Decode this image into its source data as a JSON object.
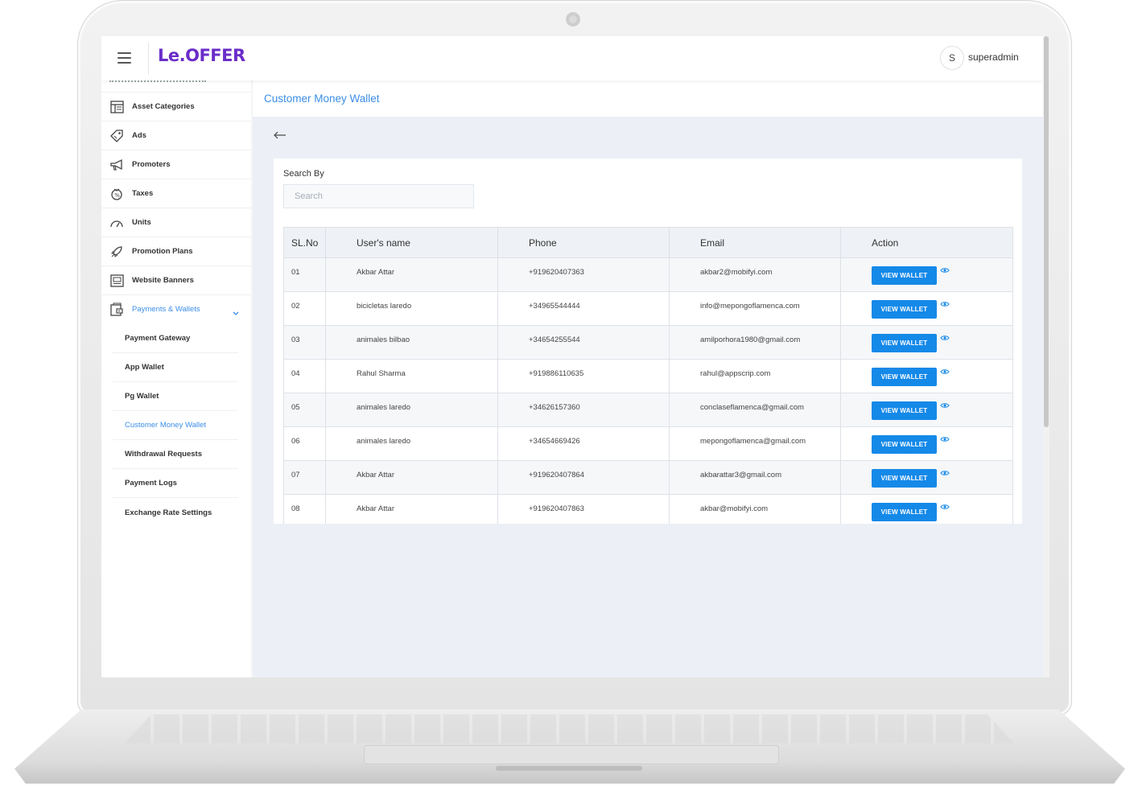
{
  "app": {
    "logo": "Le.OFFER"
  },
  "user": {
    "initial": "S",
    "name": "superadmin"
  },
  "sidebar": {
    "items": [
      {
        "label": "Asset Categories",
        "icon": "asset-categories-icon"
      },
      {
        "label": "Ads",
        "icon": "tag-icon"
      },
      {
        "label": "Promoters",
        "icon": "megaphone-icon"
      },
      {
        "label": "Taxes",
        "icon": "tax-icon"
      },
      {
        "label": "Units",
        "icon": "gauge-icon"
      },
      {
        "label": "Promotion Plans",
        "icon": "rocket-icon"
      },
      {
        "label": "Website Banners",
        "icon": "banner-icon"
      },
      {
        "label": "Payments & Wallets",
        "icon": "wallet-icon"
      }
    ],
    "subitems": [
      {
        "label": "Payment Gateway"
      },
      {
        "label": "App Wallet"
      },
      {
        "label": "Pg Wallet"
      },
      {
        "label": "Customer Money Wallet",
        "active": true
      },
      {
        "label": "Withdrawal Requests"
      },
      {
        "label": "Payment Logs"
      },
      {
        "label": "Exchange Rate Settings"
      }
    ]
  },
  "page": {
    "title": "Customer Money Wallet"
  },
  "search": {
    "label": "Search By",
    "placeholder": "Search",
    "value": ""
  },
  "table": {
    "headers": [
      "SL.No",
      "User's name",
      "Phone",
      "Email",
      "Action"
    ],
    "action_label": "VIEW WALLET",
    "rows": [
      {
        "sl": "01",
        "name": "Akbar Attar",
        "phone": "+919620407363",
        "email": "akbar2@mobifyi.com"
      },
      {
        "sl": "02",
        "name": "bicicletas laredo",
        "phone": "+34965544444",
        "email": "info@mepongoflamenca.com"
      },
      {
        "sl": "03",
        "name": "animales bilbao",
        "phone": "+34654255544",
        "email": "amilporhora1980@gmail.com"
      },
      {
        "sl": "04",
        "name": "Rahul Sharma",
        "phone": "+919886110635",
        "email": "rahul@appscrip.com"
      },
      {
        "sl": "05",
        "name": "animales laredo",
        "phone": "+34626157360",
        "email": "conclaseflamenca@gmail.com"
      },
      {
        "sl": "06",
        "name": "animales laredo",
        "phone": "+34654669426",
        "email": "mepongoflamenca@gmail.com"
      },
      {
        "sl": "07",
        "name": "Akbar Attar",
        "phone": "+919620407864",
        "email": "akbarattar3@gmail.com"
      },
      {
        "sl": "08",
        "name": "Akbar Attar",
        "phone": "+919620407863",
        "email": "akbar@mobifyi.com"
      }
    ]
  },
  "colors": {
    "accent": "#3b8ee6",
    "button": "#1589e8",
    "brand": "#6a2dc9",
    "background": "#ecf0f6"
  }
}
